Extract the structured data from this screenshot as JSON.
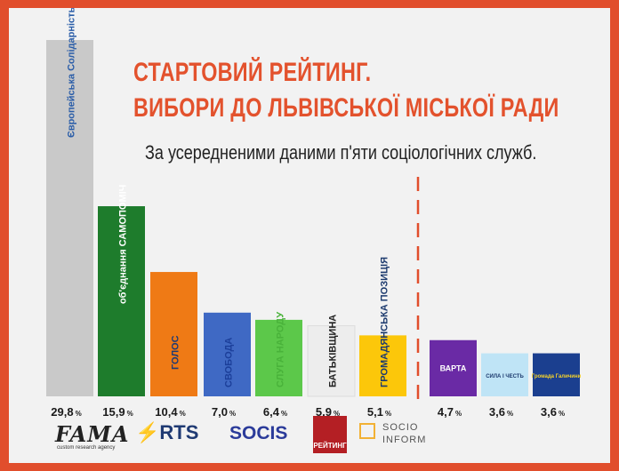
{
  "header": {
    "title_line1": "СТАРТОВИЙ РЕЙТИНГ.",
    "title_line2": "ВИБОРИ ДО ЛЬВІВСЬКОЇ МІСЬКОЇ РАДИ",
    "subtitle": "За усередненими даними п'яти соціологічних служб."
  },
  "chart_data": {
    "type": "bar",
    "title": "СТАРТОВИЙ РЕЙТИНГ. ВИБОРИ ДО ЛЬВІВСЬКОЇ МІСЬКОЇ РАДИ",
    "subtitle": "За усередненими даними п'яти соціологічних служб.",
    "unit": "%",
    "threshold_after_index": 6,
    "ylim": [
      0,
      30
    ],
    "categories": [
      {
        "id": "es",
        "label": "Європейська Солідарність",
        "value": 29.8,
        "display": "29,8",
        "color": "#c9c9c9",
        "text_color": "#2a5da8"
      },
      {
        "id": "samopomich",
        "label": "об'єднання САМОПОМІЧ",
        "value": 15.9,
        "display": "15,9",
        "color": "#1e7c2c",
        "text_color": "#ffffff"
      },
      {
        "id": "golos",
        "label": "ГОЛОС",
        "value": 10.4,
        "display": "10,4",
        "color": "#ef7a15",
        "text_color": "#1f3a73"
      },
      {
        "id": "svoboda",
        "label": "СВОБОДА",
        "value": 7.0,
        "display": "7,0",
        "color": "#3f69c4",
        "text_color": "#1c3f9a"
      },
      {
        "id": "sluha",
        "label": "СЛУГА НАРОДУ",
        "value": 6.4,
        "display": "6,4",
        "color": "#5cc84a",
        "text_color": "#49b23a"
      },
      {
        "id": "batkivshchyna",
        "label": "БАТЬКІВЩИНА",
        "value": 5.9,
        "display": "5,9",
        "color": "#ededed",
        "text_color": "#222222"
      },
      {
        "id": "hp",
        "label": "ГРОМАДЯНСЬКА ПОЗИЦІЯ",
        "value": 5.1,
        "display": "5,1",
        "color": "#fcc70a",
        "text_color": "#1c3a6e"
      },
      {
        "id": "varta",
        "label": "ВАРТА",
        "value": 4.7,
        "display": "4,7",
        "color": "#6a2aa5",
        "text_color": "#ffffff"
      },
      {
        "id": "syla",
        "label": "СИЛА І ЧЕСТЬ",
        "value": 3.6,
        "display": "3,6",
        "color": "#bfe4f6",
        "text_color": "#1c3a6e"
      },
      {
        "id": "gal",
        "label": "Громада Галичини",
        "value": 3.6,
        "display": "3,6",
        "color": "#1b3f8f",
        "text_color": "#f4d12a"
      }
    ]
  },
  "footer": {
    "fama": "FAMA",
    "fama_sub": "custom research agency",
    "rts": "RTS",
    "socis": "SOCIS",
    "reiting": "РЕЙТИНГ",
    "socio": "SOCIO",
    "inform": "INFORM"
  }
}
